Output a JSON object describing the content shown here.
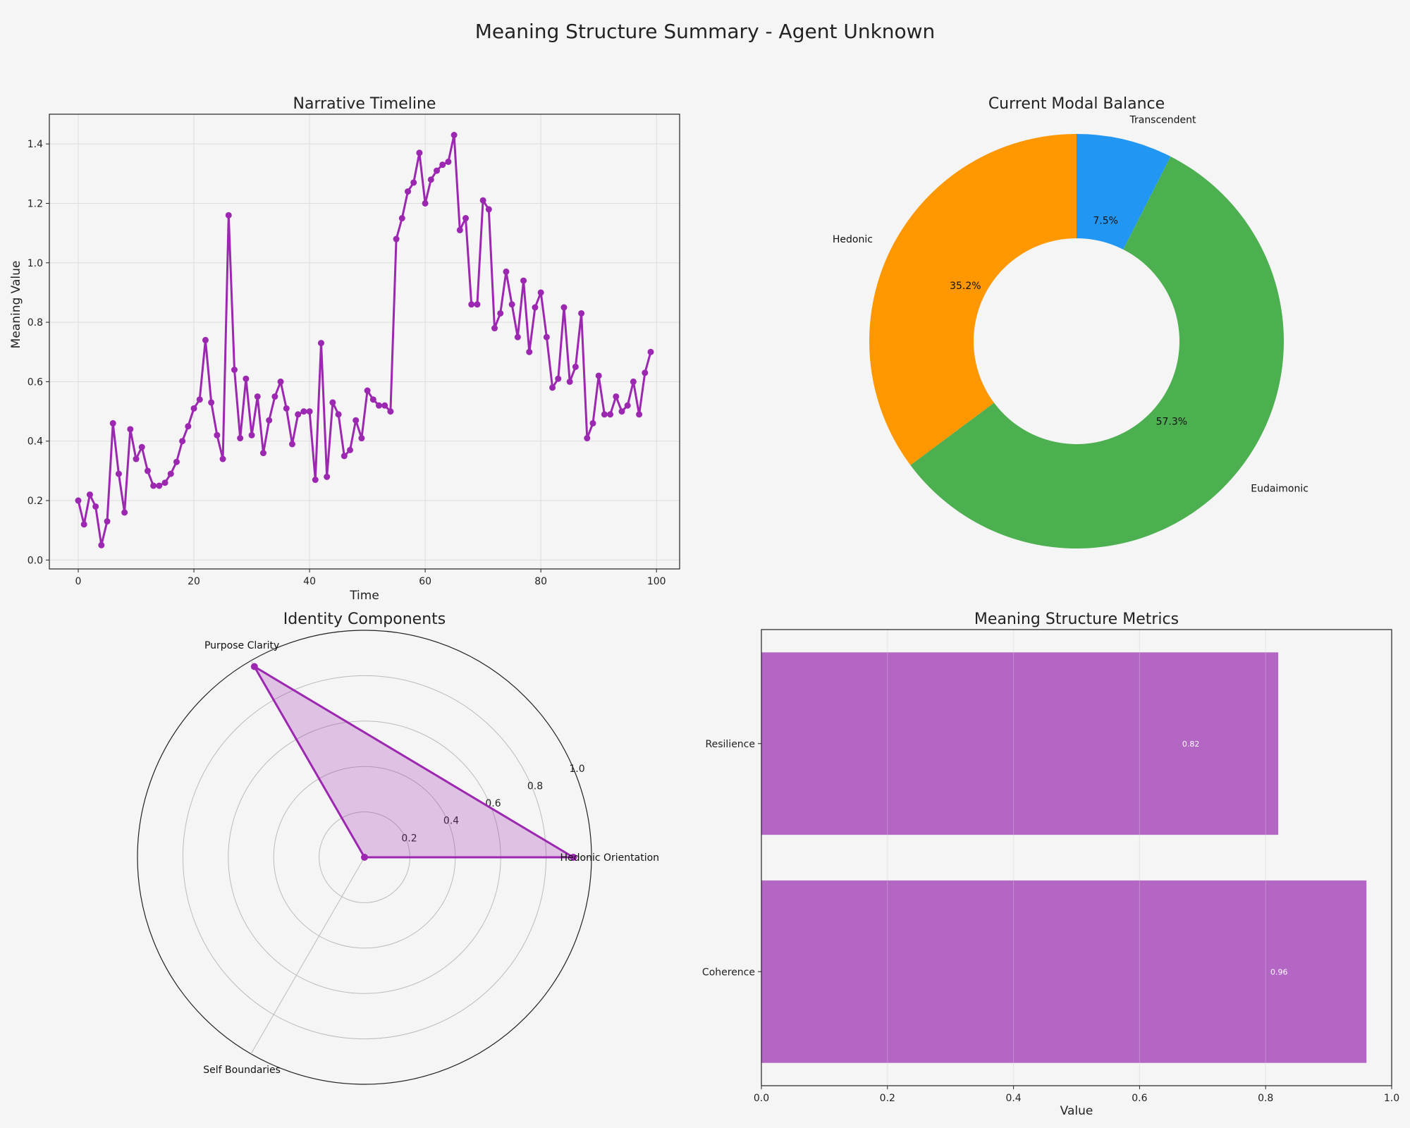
{
  "page_title": "Meaning Structure Summary - Agent Unknown",
  "chart_data": [
    {
      "id": "timeline",
      "type": "line",
      "title": "Narrative Timeline",
      "xlabel": "Time",
      "ylabel": "Meaning Value",
      "xlim": [
        -5,
        104
      ],
      "ylim": [
        -0.03,
        1.5
      ],
      "xticks": [
        0,
        20,
        40,
        60,
        80,
        100
      ],
      "yticks": [
        0.0,
        0.2,
        0.4,
        0.6,
        0.8,
        1.0,
        1.2,
        1.4
      ],
      "color": "#9c27b0",
      "grid": true,
      "x": [
        0,
        1,
        2,
        3,
        4,
        5,
        6,
        7,
        8,
        9,
        10,
        11,
        12,
        13,
        14,
        15,
        16,
        17,
        18,
        19,
        20,
        21,
        22,
        23,
        24,
        25,
        26,
        27,
        28,
        29,
        30,
        31,
        32,
        33,
        34,
        35,
        36,
        37,
        38,
        39,
        40,
        41,
        42,
        43,
        44,
        45,
        46,
        47,
        48,
        49,
        50,
        51,
        52,
        53,
        54,
        55,
        56,
        57,
        58,
        59,
        60,
        61,
        62,
        63,
        64,
        65,
        66,
        67,
        68,
        69,
        70,
        71,
        72,
        73,
        74,
        75,
        76,
        77,
        78,
        79,
        80,
        81,
        82,
        83,
        84,
        85,
        86,
        87,
        88,
        89,
        90,
        91,
        92,
        93,
        94,
        95,
        96,
        97,
        98,
        99
      ],
      "y": [
        0.2,
        0.12,
        0.22,
        0.18,
        0.05,
        0.13,
        0.46,
        0.29,
        0.16,
        0.44,
        0.34,
        0.38,
        0.3,
        0.25,
        0.25,
        0.26,
        0.29,
        0.33,
        0.4,
        0.45,
        0.51,
        0.54,
        0.74,
        0.53,
        0.42,
        0.34,
        1.16,
        0.64,
        0.41,
        0.61,
        0.42,
        0.55,
        0.36,
        0.47,
        0.55,
        0.6,
        0.51,
        0.39,
        0.49,
        0.5,
        0.5,
        0.27,
        0.73,
        0.28,
        0.53,
        0.49,
        0.35,
        0.37,
        0.47,
        0.41,
        0.57,
        0.54,
        0.52,
        0.52,
        0.5,
        1.08,
        1.15,
        1.24,
        1.27,
        1.37,
        1.2,
        1.28,
        1.31,
        1.33,
        1.34,
        1.43,
        1.11,
        1.15,
        0.86,
        0.86,
        1.21,
        1.18,
        0.78,
        0.83,
        0.97,
        0.86,
        0.75,
        0.94,
        0.7,
        0.85,
        0.9,
        0.75,
        0.58,
        0.61,
        0.85,
        0.6,
        0.65,
        0.83,
        0.41,
        0.46,
        0.62,
        0.49,
        0.49,
        0.55,
        0.5,
        0.52,
        0.6,
        0.49,
        0.63,
        0.7
      ]
    },
    {
      "id": "modal",
      "type": "pie",
      "title": "Current Modal Balance",
      "labels": [
        "Transcendent",
        "Eudaimonic",
        "Hedonic"
      ],
      "values": [
        7.5,
        57.3,
        35.2
      ],
      "pct_labels": [
        "7.5%",
        "57.3%",
        "35.2%"
      ],
      "colors": [
        "#2196f3",
        "#4caf50",
        "#ff9800"
      ],
      "donut": true
    },
    {
      "id": "identity",
      "type": "radar",
      "title": "Identity Components",
      "axes": [
        "Hedonic Orientation",
        "Purpose Clarity",
        "Self Boundaries"
      ],
      "values": [
        0.92,
        0.97,
        0.0
      ],
      "rlim": [
        0,
        1.0
      ],
      "rticks": [
        0.2,
        0.4,
        0.6,
        0.8,
        1.0
      ],
      "color": "#9c27b0"
    },
    {
      "id": "metrics",
      "type": "bar",
      "orientation": "horizontal",
      "title": "Meaning Structure Metrics",
      "xlabel": "Value",
      "categories": [
        "Coherence",
        "Resilience"
      ],
      "values": [
        0.96,
        0.82
      ],
      "value_labels": [
        "0.96",
        "0.82"
      ],
      "xlim": [
        0,
        1.0
      ],
      "xticks": [
        0.0,
        0.2,
        0.4,
        0.6,
        0.8,
        1.0
      ],
      "color": "#b366c4"
    }
  ]
}
